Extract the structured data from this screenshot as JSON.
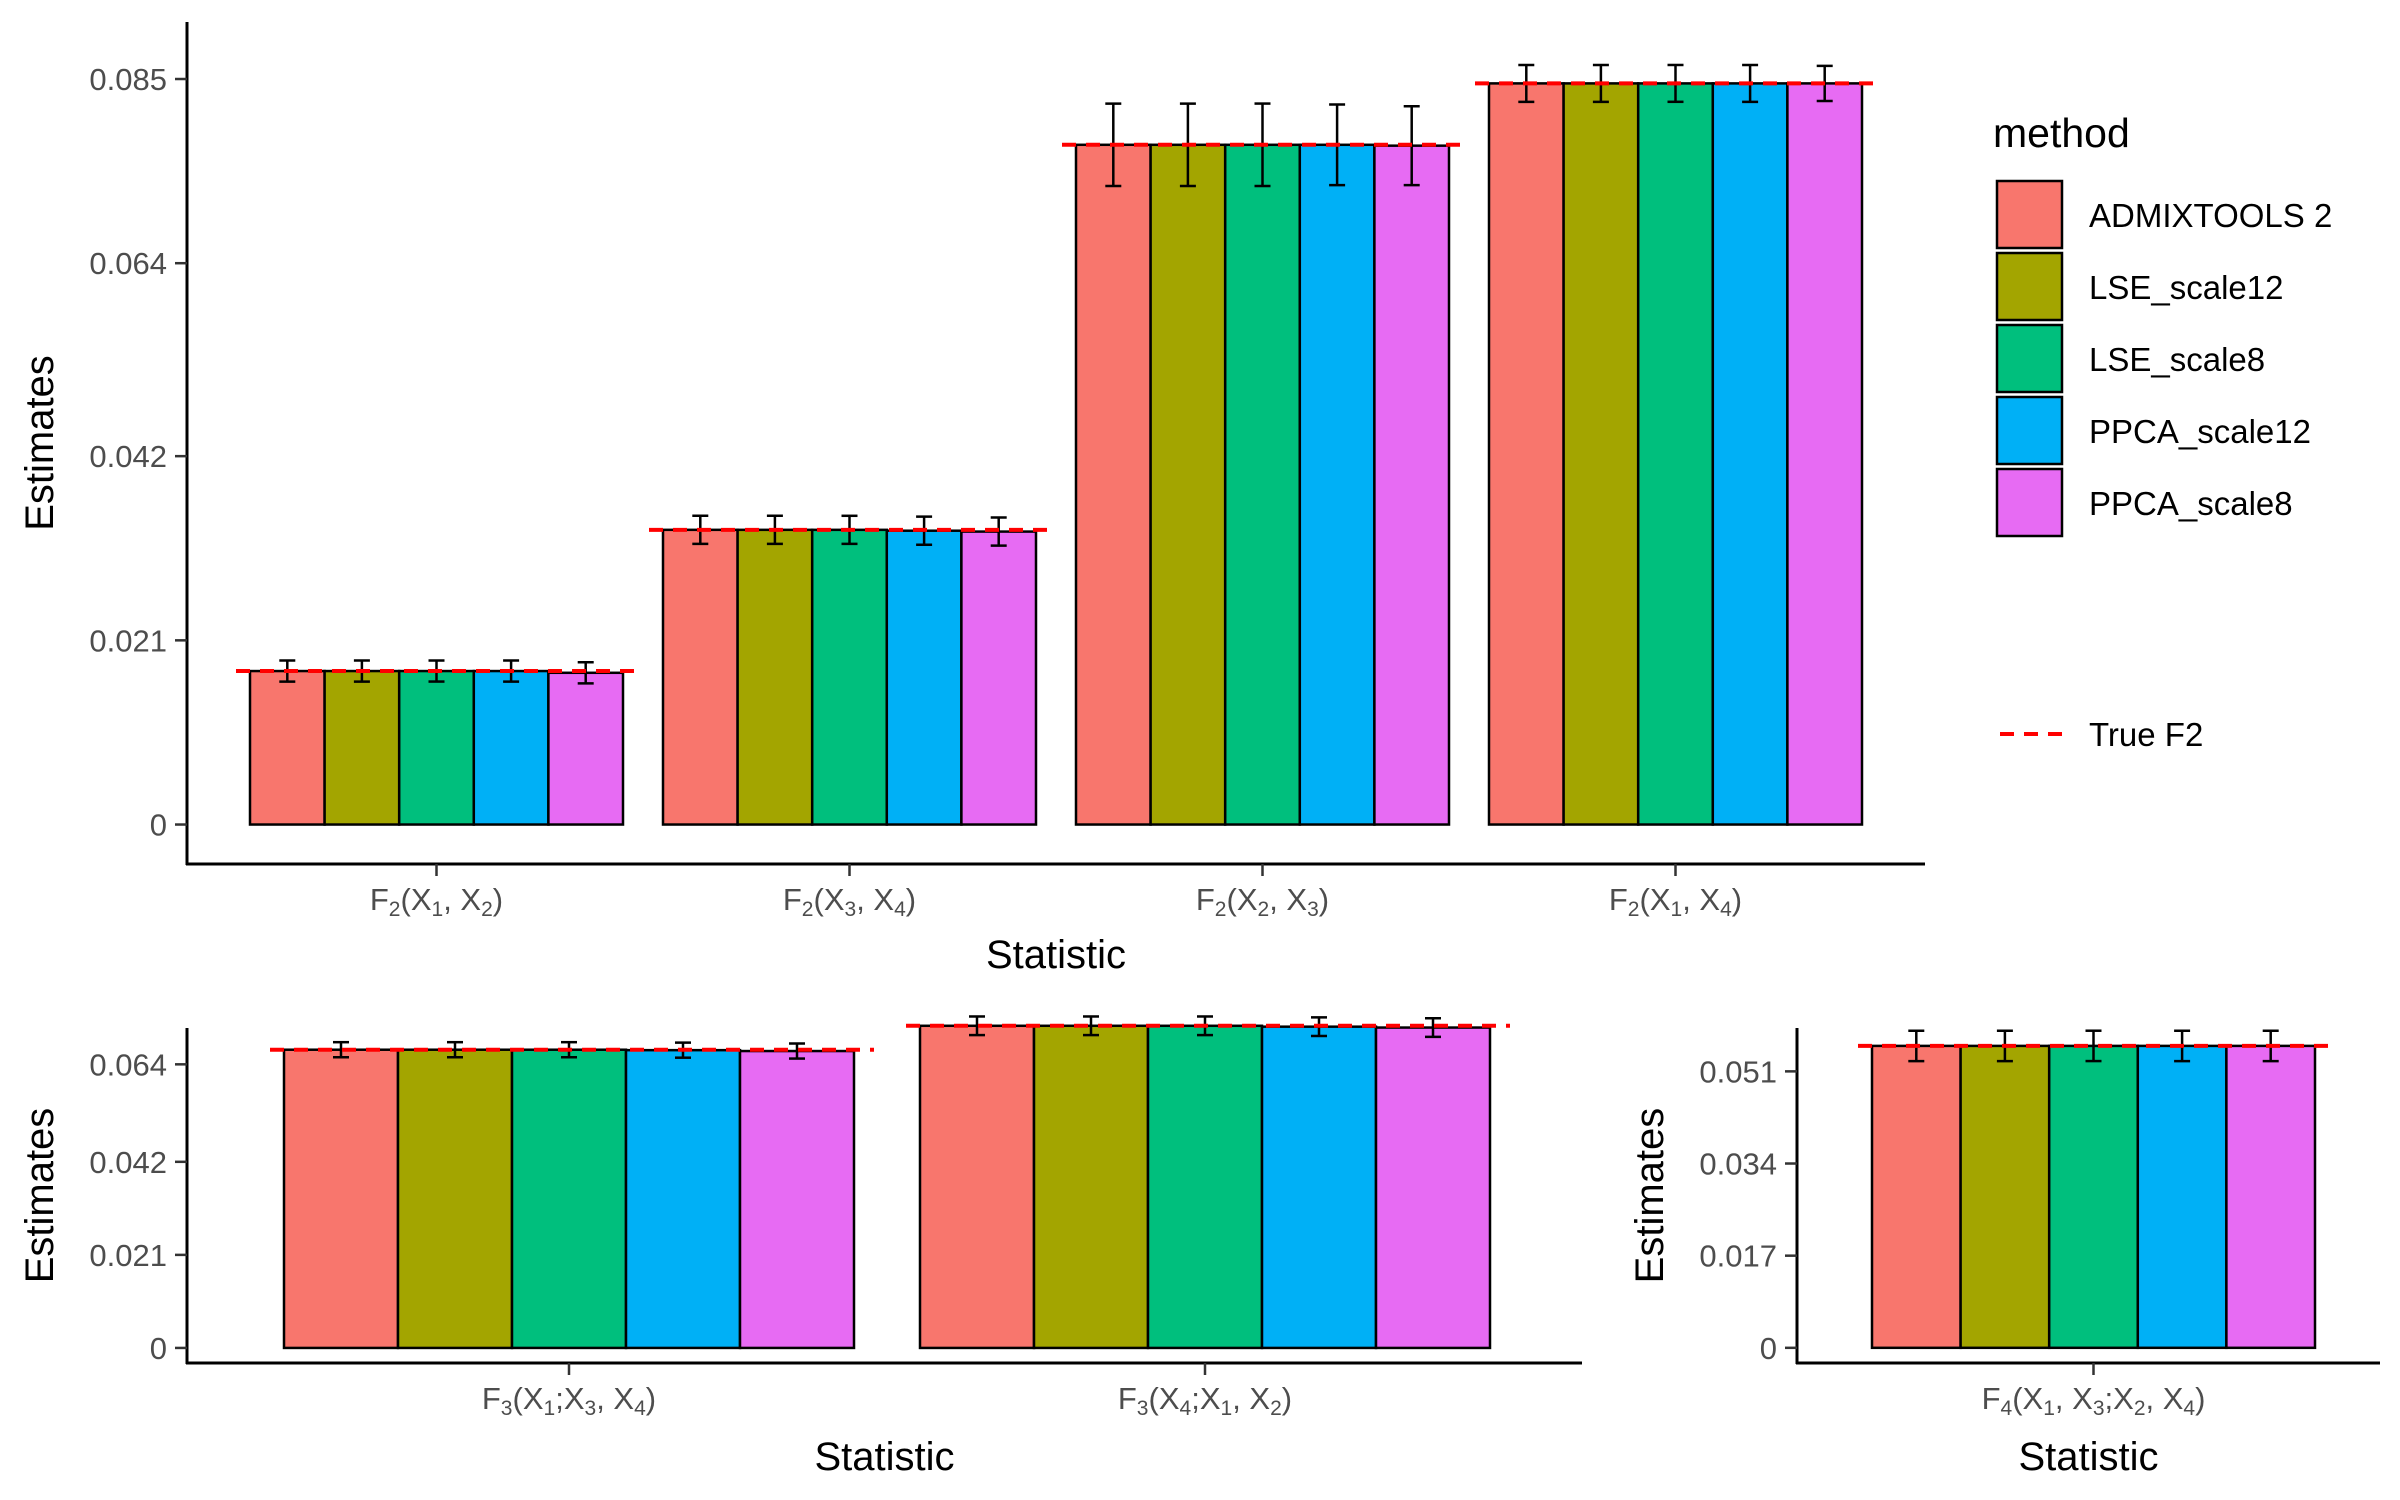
{
  "legend": {
    "title": "method",
    "true_label": "True F2",
    "true_color": "#ff0000",
    "position": "right"
  },
  "colors": {
    "ADMIXTOOLS 2": "#f8766d",
    "LSE_scale12": "#a3a500",
    "LSE_scale8": "#00bf7d",
    "PPCA_scale12": "#00b0f6",
    "PPCA_scale8": "#e76bf3"
  },
  "chart_data": [
    {
      "type": "bar",
      "panel": "top",
      "xlabel": "Statistic",
      "ylabel": "Estimates",
      "ylim": [
        -0.0045,
        0.0915
      ],
      "yticks": [
        0,
        0.021,
        0.042,
        0.064,
        0.085
      ],
      "ytick_labels": [
        "0",
        "0.021",
        "0.042",
        "0.064",
        "0.085"
      ],
      "categories": [
        {
          "base": "F",
          "sub": "2",
          "args": [
            {
              "t": "X",
              "s": "1"
            },
            {
              "t": ", "
            },
            {
              "t": "X",
              "s": "2"
            }
          ]
        },
        {
          "base": "F",
          "sub": "2",
          "args": [
            {
              "t": "X",
              "s": "3"
            },
            {
              "t": ", "
            },
            {
              "t": "X",
              "s": "4"
            }
          ]
        },
        {
          "base": "F",
          "sub": "2",
          "args": [
            {
              "t": "X",
              "s": "2"
            },
            {
              "t": ", "
            },
            {
              "t": "X",
              "s": "3"
            }
          ]
        },
        {
          "base": "F",
          "sub": "2",
          "args": [
            {
              "t": "X",
              "s": "1"
            },
            {
              "t": ", "
            },
            {
              "t": "X",
              "s": "4"
            }
          ]
        }
      ],
      "true_values": [
        0.0175,
        0.0336,
        0.0775,
        0.0845
      ],
      "series": [
        {
          "name": "ADMIXTOOLS 2",
          "values": [
            0.0175,
            0.0336,
            0.0775,
            0.0845
          ],
          "err": [
            0.0012,
            0.0016,
            0.0047,
            0.0021
          ]
        },
        {
          "name": "LSE_scale12",
          "values": [
            0.0175,
            0.0336,
            0.0775,
            0.0845
          ],
          "err": [
            0.0012,
            0.0016,
            0.0047,
            0.0021
          ]
        },
        {
          "name": "LSE_scale8",
          "values": [
            0.0175,
            0.0336,
            0.0775,
            0.0845
          ],
          "err": [
            0.0012,
            0.0016,
            0.0047,
            0.0021
          ]
        },
        {
          "name": "PPCA_scale12",
          "values": [
            0.0175,
            0.0335,
            0.0775,
            0.0845
          ],
          "err": [
            0.0012,
            0.0016,
            0.0046,
            0.0021
          ]
        },
        {
          "name": "PPCA_scale8",
          "values": [
            0.0173,
            0.0334,
            0.0774,
            0.0845
          ],
          "err": [
            0.0012,
            0.0016,
            0.0045,
            0.002
          ]
        }
      ]
    },
    {
      "type": "bar",
      "panel": "bottom-left",
      "xlabel": "Statistic",
      "ylabel": "Estimates",
      "ylim": [
        -0.0034,
        0.0722
      ],
      "yticks": [
        0,
        0.021,
        0.042,
        0.064
      ],
      "ytick_labels": [
        "0",
        "0.021",
        "0.042",
        "0.064"
      ],
      "categories": [
        {
          "base": "F",
          "sub": "3",
          "args": [
            {
              "t": "X",
              "s": "1"
            },
            {
              "t": ";"
            },
            {
              "t": "X",
              "s": "3"
            },
            {
              "t": ", "
            },
            {
              "t": "X",
              "s": "4"
            }
          ]
        },
        {
          "base": "F",
          "sub": "3",
          "args": [
            {
              "t": "X",
              "s": "4"
            },
            {
              "t": ";"
            },
            {
              "t": "X",
              "s": "1"
            },
            {
              "t": ", "
            },
            {
              "t": "X",
              "s": "2"
            }
          ]
        }
      ],
      "true_values": [
        0.0673,
        0.0727
      ],
      "series": [
        {
          "name": "ADMIXTOOLS 2",
          "values": [
            0.0673,
            0.0727
          ],
          "err": [
            0.0017,
            0.0021
          ]
        },
        {
          "name": "LSE_scale12",
          "values": [
            0.0673,
            0.0727
          ],
          "err": [
            0.0017,
            0.0021
          ]
        },
        {
          "name": "LSE_scale8",
          "values": [
            0.0673,
            0.0727
          ],
          "err": [
            0.0017,
            0.0021
          ]
        },
        {
          "name": "PPCA_scale12",
          "values": [
            0.0672,
            0.0725
          ],
          "err": [
            0.0017,
            0.0021
          ]
        },
        {
          "name": "PPCA_scale8",
          "values": [
            0.067,
            0.0723
          ],
          "err": [
            0.0017,
            0.0021
          ]
        }
      ]
    },
    {
      "type": "bar",
      "panel": "bottom-right",
      "xlabel": "Statistic",
      "ylabel": "Estimates",
      "ylim": [
        -0.0028,
        0.059
      ],
      "yticks": [
        0,
        0.017,
        0.034,
        0.051
      ],
      "ytick_labels": [
        "0",
        "0.017",
        "0.034",
        "0.051"
      ],
      "categories": [
        {
          "base": "F",
          "sub": "4",
          "args": [
            {
              "t": "X",
              "s": "1"
            },
            {
              "t": ", "
            },
            {
              "t": "X",
              "s": "3"
            },
            {
              "t": ";"
            },
            {
              "t": "X",
              "s": "2"
            },
            {
              "t": ", "
            },
            {
              "t": "X",
              "s": "4"
            }
          ]
        }
      ],
      "true_values": [
        0.0557
      ],
      "series": [
        {
          "name": "ADMIXTOOLS 2",
          "values": [
            0.0557
          ],
          "err": [
            0.0028
          ]
        },
        {
          "name": "LSE_scale12",
          "values": [
            0.0557
          ],
          "err": [
            0.0028
          ]
        },
        {
          "name": "LSE_scale8",
          "values": [
            0.0557
          ],
          "err": [
            0.0028
          ]
        },
        {
          "name": "PPCA_scale12",
          "values": [
            0.0557
          ],
          "err": [
            0.0028
          ]
        },
        {
          "name": "PPCA_scale8",
          "values": [
            0.0557
          ],
          "err": [
            0.0028
          ]
        }
      ]
    }
  ]
}
